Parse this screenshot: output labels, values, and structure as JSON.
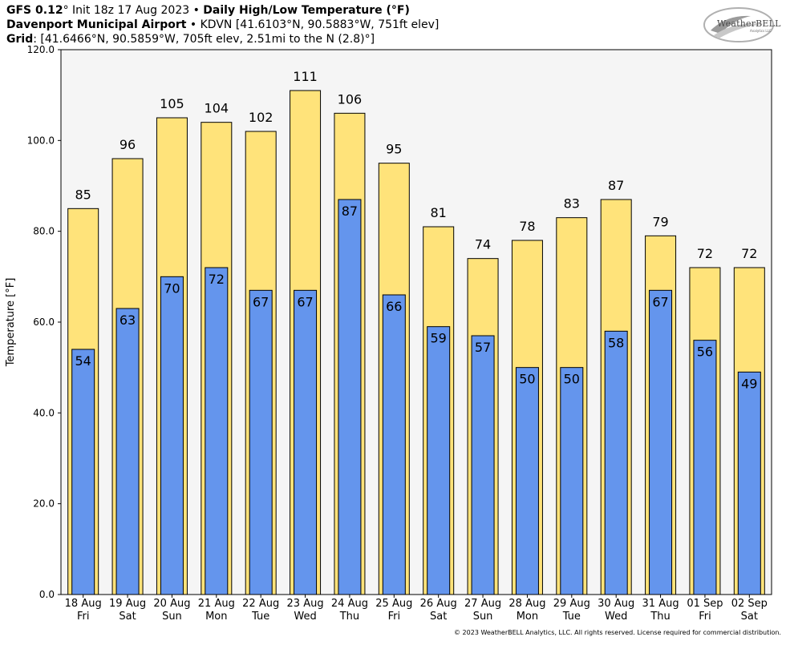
{
  "header": {
    "line1_model": "GFS 0.12",
    "line1_deg": "°",
    "line1_init": " Init 18z 17 Aug 2023 • ",
    "line1_title": "Daily High/Low Temperature (°F)",
    "line2_station": "Davenport Municipal Airport",
    "line2_rest": " • KDVN [41.6103°N, 90.5883°W, 751ft elev]",
    "line3_label": "Grid",
    "line3_rest": ": [41.6466°N, 90.5859°W, 705ft elev, 2.51mi to the N (2.8)°]"
  },
  "logo": {
    "name": "WeatherBELL",
    "sub": "Analytics LLC"
  },
  "footer": "© 2023 WeatherBELL Analytics, LLC. All rights reserved. License required for commercial distribution.",
  "colors": {
    "high": "#ffe37a",
    "low": "#6495ed",
    "plot_bg": "#f5f5f5"
  },
  "chart_data": {
    "type": "bar",
    "ylabel": "Temperature [°F]",
    "ylim": [
      0,
      120
    ],
    "yticks": [
      "0.0",
      "20.0",
      "40.0",
      "60.0",
      "80.0",
      "100.0",
      "120.0"
    ],
    "grid": false,
    "categories": [
      "18 Aug",
      "19 Aug",
      "20 Aug",
      "21 Aug",
      "22 Aug",
      "23 Aug",
      "24 Aug",
      "25 Aug",
      "26 Aug",
      "27 Aug",
      "28 Aug",
      "29 Aug",
      "30 Aug",
      "31 Aug",
      "01 Sep",
      "02 Sep"
    ],
    "weekdays": [
      "Fri",
      "Sat",
      "Sun",
      "Mon",
      "Tue",
      "Wed",
      "Thu",
      "Fri",
      "Sat",
      "Sun",
      "Mon",
      "Tue",
      "Wed",
      "Thu",
      "Fri",
      "Sat"
    ],
    "series": [
      {
        "role": "high",
        "values": [
          85,
          96,
          105,
          104,
          102,
          111,
          106,
          95,
          81,
          74,
          78,
          83,
          87,
          79,
          72,
          72
        ]
      },
      {
        "role": "low",
        "values": [
          54,
          63,
          70,
          72,
          67,
          67,
          87,
          66,
          59,
          57,
          50,
          50,
          58,
          67,
          56,
          49
        ]
      }
    ]
  }
}
